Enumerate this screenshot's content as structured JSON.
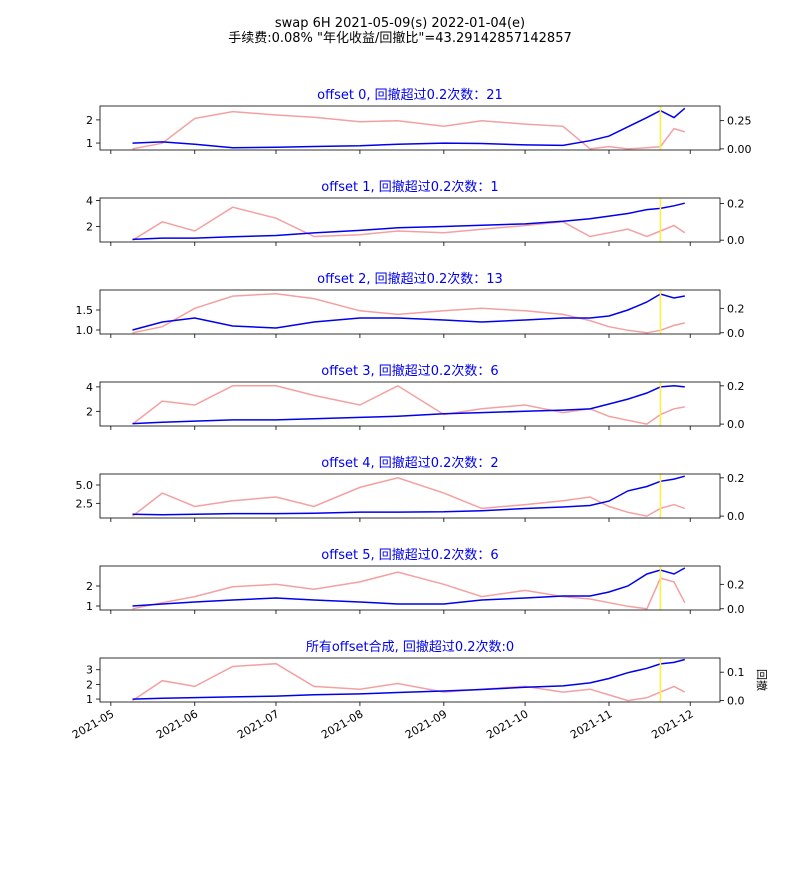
{
  "figure": {
    "title_line1": "swap 6H 2021-05-09(s) 2022-01-04(e)",
    "title_line2": "手续费:0.08% \"年化收益/回撤比\"=43.29142857142857",
    "right_axis_label": "回撤",
    "x_tick_labels": [
      "2021-05",
      "2021-06",
      "2021-07",
      "2021-08",
      "2021-09",
      "2021-10",
      "2021-11",
      "2021-12"
    ]
  },
  "colors": {
    "equity_line": "#0000ee",
    "drawdown_line": "#f4a0a0",
    "marker_line": "#ffee44",
    "title_text": "#0000ee"
  },
  "chart_data": [
    {
      "type": "line",
      "title": "offset 0, 回撤超过0.2次数：21",
      "x": [
        "2021-05-09",
        "2021-05-20",
        "2021-06-01",
        "2021-06-15",
        "2021-07-01",
        "2021-07-15",
        "2021-08-01",
        "2021-08-15",
        "2021-09-01",
        "2021-09-15",
        "2021-10-01",
        "2021-10-15",
        "2021-10-25",
        "2021-11-01",
        "2021-11-08",
        "2021-11-15",
        "2021-11-20",
        "2021-11-25",
        "2021-11-29"
      ],
      "series": [
        {
          "axis": "left",
          "values": [
            1.0,
            1.05,
            0.95,
            0.8,
            0.82,
            0.85,
            0.88,
            0.95,
            1.0,
            0.98,
            0.92,
            0.9,
            1.1,
            1.3,
            1.7,
            2.1,
            2.4,
            2.1,
            2.5
          ]
        },
        {
          "axis": "right",
          "values": [
            0.0,
            0.05,
            0.27,
            0.33,
            0.3,
            0.28,
            0.24,
            0.25,
            0.2,
            0.25,
            0.22,
            0.2,
            0.0,
            0.02,
            0.0,
            0.01,
            0.02,
            0.18,
            0.15
          ]
        }
      ],
      "left_ticks": [
        1,
        2
      ],
      "left_ylim": [
        0.7,
        2.6
      ],
      "right_ticks": [
        0.0,
        0.25
      ],
      "right_ylim": [
        -0.01,
        0.38
      ],
      "left_tick_labels": [
        "1",
        "2"
      ],
      "right_tick_labels": [
        "0.00",
        "0.25"
      ]
    },
    {
      "type": "line",
      "title": "offset 1, 回撤超过0.2次数：1",
      "x": [
        "2021-05-09",
        "2021-05-20",
        "2021-06-01",
        "2021-06-15",
        "2021-07-01",
        "2021-07-15",
        "2021-08-01",
        "2021-08-15",
        "2021-09-01",
        "2021-09-15",
        "2021-10-01",
        "2021-10-15",
        "2021-10-25",
        "2021-11-01",
        "2021-11-08",
        "2021-11-15",
        "2021-11-20",
        "2021-11-25",
        "2021-11-29"
      ],
      "series": [
        {
          "axis": "left",
          "values": [
            1.0,
            1.1,
            1.1,
            1.2,
            1.3,
            1.5,
            1.7,
            1.9,
            2.0,
            2.1,
            2.2,
            2.4,
            2.6,
            2.8,
            3.0,
            3.3,
            3.4,
            3.6,
            3.8
          ]
        },
        {
          "axis": "right",
          "values": [
            0.0,
            0.1,
            0.05,
            0.18,
            0.12,
            0.02,
            0.03,
            0.05,
            0.04,
            0.06,
            0.08,
            0.1,
            0.02,
            0.04,
            0.06,
            0.02,
            0.05,
            0.08,
            0.04
          ]
        }
      ],
      "left_ticks": [
        2,
        4
      ],
      "left_ylim": [
        0.8,
        4.2
      ],
      "right_ticks": [
        0.0,
        0.2
      ],
      "right_ylim": [
        -0.01,
        0.23
      ],
      "left_tick_labels": [
        "2",
        "4"
      ],
      "right_tick_labels": [
        "0.0",
        "0.2"
      ]
    },
    {
      "type": "line",
      "title": "offset 2, 回撤超过0.2次数：13",
      "x": [
        "2021-05-09",
        "2021-05-20",
        "2021-06-01",
        "2021-06-15",
        "2021-07-01",
        "2021-07-15",
        "2021-08-01",
        "2021-08-15",
        "2021-09-01",
        "2021-09-15",
        "2021-10-01",
        "2021-10-15",
        "2021-10-25",
        "2021-11-01",
        "2021-11-08",
        "2021-11-15",
        "2021-11-20",
        "2021-11-25",
        "2021-11-29"
      ],
      "series": [
        {
          "axis": "left",
          "values": [
            1.0,
            1.2,
            1.3,
            1.1,
            1.05,
            1.2,
            1.3,
            1.3,
            1.25,
            1.2,
            1.25,
            1.3,
            1.3,
            1.35,
            1.5,
            1.7,
            1.9,
            1.8,
            1.85
          ]
        },
        {
          "axis": "right",
          "values": [
            0.0,
            0.05,
            0.2,
            0.3,
            0.32,
            0.28,
            0.18,
            0.15,
            0.18,
            0.2,
            0.18,
            0.15,
            0.1,
            0.05,
            0.02,
            0.0,
            0.02,
            0.06,
            0.08
          ]
        }
      ],
      "left_ticks": [
        1.0,
        1.5
      ],
      "left_ylim": [
        0.9,
        2.0
      ],
      "right_ticks": [
        0.0,
        0.2
      ],
      "right_ylim": [
        -0.01,
        0.35
      ],
      "left_tick_labels": [
        "1.0",
        "1.5"
      ],
      "right_tick_labels": [
        "0.0",
        "0.2"
      ]
    },
    {
      "type": "line",
      "title": "offset 3, 回撤超过0.2次数：6",
      "x": [
        "2021-05-09",
        "2021-05-20",
        "2021-06-01",
        "2021-06-15",
        "2021-07-01",
        "2021-07-15",
        "2021-08-01",
        "2021-08-15",
        "2021-09-01",
        "2021-09-15",
        "2021-10-01",
        "2021-10-15",
        "2021-10-25",
        "2021-11-01",
        "2021-11-08",
        "2021-11-15",
        "2021-11-20",
        "2021-11-25",
        "2021-11-29"
      ],
      "series": [
        {
          "axis": "left",
          "values": [
            1.0,
            1.1,
            1.2,
            1.3,
            1.3,
            1.4,
            1.5,
            1.6,
            1.8,
            1.9,
            2.0,
            2.1,
            2.2,
            2.6,
            3.0,
            3.5,
            4.0,
            4.1,
            4.0
          ]
        },
        {
          "axis": "right",
          "values": [
            0.0,
            0.12,
            0.1,
            0.2,
            0.2,
            0.15,
            0.1,
            0.2,
            0.05,
            0.08,
            0.1,
            0.06,
            0.08,
            0.04,
            0.02,
            0.0,
            0.05,
            0.08,
            0.09
          ]
        }
      ],
      "left_ticks": [
        2,
        4
      ],
      "left_ylim": [
        0.8,
        4.4
      ],
      "right_ticks": [
        0.0,
        0.2
      ],
      "right_ylim": [
        -0.01,
        0.22
      ],
      "left_tick_labels": [
        "2",
        "4"
      ],
      "right_tick_labels": [
        "0.0",
        "0.2"
      ]
    },
    {
      "type": "line",
      "title": "offset 4, 回撤超过0.2次数：2",
      "x": [
        "2021-05-09",
        "2021-05-20",
        "2021-06-01",
        "2021-06-15",
        "2021-07-01",
        "2021-07-15",
        "2021-08-01",
        "2021-08-15",
        "2021-09-01",
        "2021-09-15",
        "2021-10-01",
        "2021-10-15",
        "2021-10-25",
        "2021-11-01",
        "2021-11-08",
        "2021-11-15",
        "2021-11-20",
        "2021-11-25",
        "2021-11-29"
      ],
      "series": [
        {
          "axis": "left",
          "values": [
            1.0,
            0.95,
            1.0,
            1.1,
            1.1,
            1.15,
            1.3,
            1.3,
            1.35,
            1.5,
            1.8,
            2.0,
            2.2,
            2.8,
            4.2,
            4.8,
            5.5,
            5.8,
            6.2
          ]
        },
        {
          "axis": "right",
          "values": [
            0.0,
            0.12,
            0.05,
            0.08,
            0.1,
            0.05,
            0.15,
            0.2,
            0.12,
            0.04,
            0.06,
            0.08,
            0.1,
            0.05,
            0.02,
            0.0,
            0.04,
            0.06,
            0.04
          ]
        }
      ],
      "left_ticks": [
        2.5,
        5.0
      ],
      "left_ylim": [
        0.5,
        6.5
      ],
      "right_ticks": [
        0.0,
        0.2
      ],
      "right_ylim": [
        -0.01,
        0.22
      ],
      "left_tick_labels": [
        "2.5",
        "5.0"
      ],
      "right_tick_labels": [
        "0.0",
        "0.2"
      ]
    },
    {
      "type": "line",
      "title": "offset 5, 回撤超过0.2次数：6",
      "x": [
        "2021-05-09",
        "2021-05-20",
        "2021-06-01",
        "2021-06-15",
        "2021-07-01",
        "2021-07-15",
        "2021-08-01",
        "2021-08-15",
        "2021-09-01",
        "2021-09-15",
        "2021-10-01",
        "2021-10-15",
        "2021-10-25",
        "2021-11-01",
        "2021-11-08",
        "2021-11-15",
        "2021-11-20",
        "2021-11-25",
        "2021-11-29"
      ],
      "series": [
        {
          "axis": "left",
          "values": [
            1.0,
            1.1,
            1.2,
            1.3,
            1.4,
            1.3,
            1.2,
            1.1,
            1.1,
            1.3,
            1.4,
            1.5,
            1.5,
            1.7,
            2.0,
            2.6,
            2.8,
            2.6,
            2.9
          ]
        },
        {
          "axis": "right",
          "values": [
            0.0,
            0.05,
            0.1,
            0.18,
            0.2,
            0.16,
            0.22,
            0.3,
            0.2,
            0.1,
            0.15,
            0.1,
            0.08,
            0.05,
            0.02,
            0.0,
            0.25,
            0.22,
            0.05
          ]
        }
      ],
      "left_ticks": [
        1,
        2
      ],
      "left_ylim": [
        0.8,
        3.0
      ],
      "right_ticks": [
        0.0,
        0.2
      ],
      "right_ylim": [
        -0.01,
        0.35
      ],
      "left_tick_labels": [
        "1",
        "2"
      ],
      "right_tick_labels": [
        "0.0",
        "0.2"
      ]
    },
    {
      "type": "line",
      "title": "所有offset合成, 回撤超过0.2次数:0",
      "x": [
        "2021-05-09",
        "2021-05-20",
        "2021-06-01",
        "2021-06-15",
        "2021-07-01",
        "2021-07-15",
        "2021-08-01",
        "2021-08-15",
        "2021-09-01",
        "2021-09-15",
        "2021-10-01",
        "2021-10-15",
        "2021-10-25",
        "2021-11-01",
        "2021-11-08",
        "2021-11-15",
        "2021-11-20",
        "2021-11-25",
        "2021-11-29"
      ],
      "series": [
        {
          "axis": "left",
          "values": [
            1.0,
            1.05,
            1.1,
            1.15,
            1.2,
            1.3,
            1.35,
            1.45,
            1.55,
            1.65,
            1.8,
            1.9,
            2.1,
            2.4,
            2.8,
            3.1,
            3.4,
            3.5,
            3.7
          ]
        },
        {
          "axis": "right",
          "values": [
            0.0,
            0.07,
            0.05,
            0.12,
            0.13,
            0.05,
            0.04,
            0.06,
            0.03,
            0.04,
            0.05,
            0.03,
            0.04,
            0.02,
            0.0,
            0.01,
            0.03,
            0.05,
            0.03
          ]
        }
      ],
      "left_ticks": [
        1,
        2,
        3
      ],
      "left_ylim": [
        0.8,
        3.8
      ],
      "right_ticks": [
        0.0,
        0.1
      ],
      "right_ylim": [
        -0.005,
        0.15
      ],
      "left_tick_labels": [
        "1",
        "2",
        "3"
      ],
      "right_tick_labels": [
        "0.0",
        "0.1"
      ]
    }
  ]
}
